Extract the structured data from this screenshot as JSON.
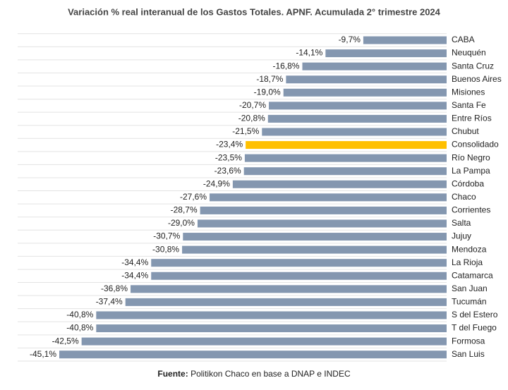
{
  "chart_data": {
    "type": "bar",
    "orientation": "horizontal",
    "title": "Variación % real interanual de los Gastos Totales. APNF. Acumulada 2° trimestre 2024",
    "categories": [
      "CABA",
      "Neuquén",
      "Santa Cruz",
      "Buenos Aires",
      "Misiones",
      "Santa Fe",
      "Entre Ríos",
      "Chubut",
      "Consolidado",
      "Río Negro",
      "La Pampa",
      "Córdoba",
      "Chaco",
      "Corrientes",
      "Salta",
      "Jujuy",
      "Mendoza",
      "La Rioja",
      "Catamarca",
      "San Juan",
      "Tucumán",
      "S del Estero",
      "T del Fuego",
      "Formosa",
      "San Luis"
    ],
    "values": [
      -9.7,
      -14.1,
      -16.8,
      -18.7,
      -19.0,
      -20.7,
      -20.8,
      -21.5,
      -23.4,
      -23.5,
      -23.6,
      -24.9,
      -27.6,
      -28.7,
      -29.0,
      -30.7,
      -30.8,
      -34.4,
      -34.4,
      -36.8,
      -37.4,
      -40.8,
      -40.8,
      -42.5,
      -45.1
    ],
    "value_labels": [
      "-9,7%",
      "-14,1%",
      "-16,8%",
      "-18,7%",
      "-19,0%",
      "-20,7%",
      "-20,8%",
      "-21,5%",
      "-23,4%",
      "-23,5%",
      "-23,6%",
      "-24,9%",
      "-27,6%",
      "-28,7%",
      "-29,0%",
      "-30,7%",
      "-30,8%",
      "-34,4%",
      "-34,4%",
      "-36,8%",
      "-37,4%",
      "-40,8%",
      "-40,8%",
      "-42,5%",
      "-45,1%"
    ],
    "colors": [
      "#8497b0",
      "#8497b0",
      "#8497b0",
      "#8497b0",
      "#8497b0",
      "#8497b0",
      "#8497b0",
      "#8497b0",
      "#ffc000",
      "#8497b0",
      "#8497b0",
      "#8497b0",
      "#8497b0",
      "#8497b0",
      "#8497b0",
      "#8497b0",
      "#8497b0",
      "#8497b0",
      "#8497b0",
      "#8497b0",
      "#8497b0",
      "#8497b0",
      "#8497b0",
      "#8497b0",
      "#8497b0"
    ],
    "source_label": "Fuente:",
    "source_text": "Politikon Chaco en base a DNAP e INDEC"
  }
}
